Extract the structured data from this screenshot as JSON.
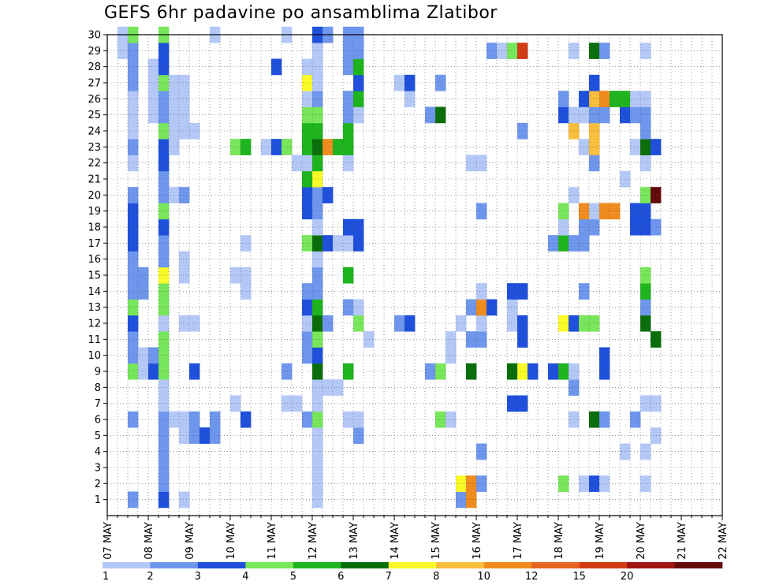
{
  "chart_data": {
    "type": "heatmap",
    "title": "GEFS 6hr padavine po ansamblima Zlatibor",
    "y_ticks": [
      1,
      2,
      3,
      4,
      5,
      6,
      7,
      8,
      9,
      10,
      11,
      12,
      13,
      14,
      15,
      16,
      17,
      18,
      19,
      20,
      21,
      22,
      23,
      24,
      25,
      26,
      27,
      28,
      29,
      30
    ],
    "ylim": [
      0,
      30
    ],
    "x_ticks": [
      "07 MAY",
      "08 MAY",
      "09 MAY",
      "10 MAY",
      "11 MAY",
      "12 MAY",
      "13 MAY",
      "14 MAY",
      "15 MAY",
      "16 MAY",
      "17 MAY",
      "18 MAY",
      "19 MAY",
      "20 MAY",
      "21 MAY",
      "22 MAY"
    ],
    "x_steps_per_day": 4,
    "grid": true,
    "colorbar": {
      "boundaries": [
        1,
        2,
        3,
        4,
        5,
        6,
        7,
        8,
        10,
        12,
        15,
        20
      ],
      "labels": [
        "1",
        "2",
        "3",
        "4",
        "5",
        "6",
        "7",
        "8",
        "10",
        "12",
        "15",
        "20"
      ],
      "colors": [
        "#b4c8f8",
        "#6e96ec",
        "#1e50dc",
        "#78e65a",
        "#1eb41e",
        "#0a6e0a",
        "#fafa28",
        "#f8be3c",
        "#f08c1e",
        "#e6641e",
        "#d23c14",
        "#a01414",
        "#640a0a"
      ]
    },
    "color_levels_note": "cells: [x_step, member, level] where level 0..12 indexes colorbar.colors",
    "cells": [
      [
        1,
        29,
        0
      ],
      [
        1,
        30,
        0
      ],
      [
        2,
        1,
        1
      ],
      [
        2,
        6,
        1
      ],
      [
        2,
        9,
        3
      ],
      [
        2,
        10,
        1
      ],
      [
        2,
        11,
        1
      ],
      [
        2,
        12,
        2
      ],
      [
        2,
        13,
        3
      ],
      [
        2,
        14,
        1
      ],
      [
        2,
        15,
        1
      ],
      [
        2,
        16,
        1
      ],
      [
        2,
        17,
        2
      ],
      [
        2,
        18,
        2
      ],
      [
        2,
        19,
        2
      ],
      [
        2,
        20,
        1
      ],
      [
        2,
        22,
        0
      ],
      [
        2,
        23,
        1
      ],
      [
        2,
        24,
        0
      ],
      [
        2,
        25,
        0
      ],
      [
        2,
        26,
        0
      ],
      [
        2,
        27,
        1
      ],
      [
        2,
        28,
        1
      ],
      [
        2,
        29,
        1
      ],
      [
        2,
        30,
        3
      ],
      [
        3,
        9,
        0
      ],
      [
        3,
        10,
        0
      ],
      [
        3,
        14,
        1
      ],
      [
        3,
        15,
        1
      ],
      [
        4,
        9,
        2
      ],
      [
        4,
        10,
        1
      ],
      [
        4,
        25,
        0
      ],
      [
        4,
        26,
        0
      ],
      [
        4,
        27,
        0
      ],
      [
        4,
        28,
        0
      ],
      [
        5,
        1,
        2
      ],
      [
        5,
        2,
        1
      ],
      [
        5,
        3,
        1
      ],
      [
        5,
        4,
        1
      ],
      [
        5,
        5,
        1
      ],
      [
        5,
        6,
        1
      ],
      [
        5,
        7,
        0
      ],
      [
        5,
        8,
        0
      ],
      [
        5,
        9,
        3
      ],
      [
        5,
        10,
        3
      ],
      [
        5,
        11,
        3
      ],
      [
        5,
        12,
        0
      ],
      [
        5,
        13,
        3
      ],
      [
        5,
        14,
        3
      ],
      [
        5,
        15,
        6
      ],
      [
        5,
        16,
        1
      ],
      [
        5,
        17,
        1
      ],
      [
        5,
        18,
        2
      ],
      [
        5,
        19,
        3
      ],
      [
        5,
        20,
        1
      ],
      [
        5,
        21,
        1
      ],
      [
        5,
        22,
        2
      ],
      [
        5,
        23,
        2
      ],
      [
        5,
        24,
        3
      ],
      [
        5,
        25,
        1
      ],
      [
        5,
        26,
        1
      ],
      [
        5,
        27,
        3
      ],
      [
        5,
        28,
        2
      ],
      [
        5,
        29,
        2
      ],
      [
        5,
        30,
        3
      ],
      [
        6,
        6,
        0
      ],
      [
        6,
        20,
        0
      ],
      [
        6,
        23,
        0
      ],
      [
        6,
        24,
        0
      ],
      [
        6,
        25,
        0
      ],
      [
        6,
        26,
        0
      ],
      [
        6,
        27,
        0
      ],
      [
        7,
        1,
        0
      ],
      [
        7,
        5,
        0
      ],
      [
        7,
        6,
        0
      ],
      [
        7,
        12,
        0
      ],
      [
        7,
        15,
        0
      ],
      [
        7,
        16,
        0
      ],
      [
        7,
        20,
        1
      ],
      [
        7,
        24,
        0
      ],
      [
        7,
        25,
        0
      ],
      [
        7,
        26,
        0
      ],
      [
        7,
        27,
        0
      ],
      [
        8,
        5,
        1
      ],
      [
        8,
        6,
        1
      ],
      [
        8,
        9,
        2
      ],
      [
        8,
        12,
        0
      ],
      [
        8,
        24,
        0
      ],
      [
        9,
        5,
        2
      ],
      [
        10,
        5,
        1
      ],
      [
        10,
        6,
        1
      ],
      [
        10,
        30,
        0
      ],
      [
        12,
        7,
        0
      ],
      [
        12,
        15,
        0
      ],
      [
        12,
        23,
        3
      ],
      [
        13,
        6,
        2
      ],
      [
        13,
        14,
        0
      ],
      [
        13,
        15,
        0
      ],
      [
        13,
        17,
        0
      ],
      [
        13,
        23,
        4
      ],
      [
        15,
        23,
        0
      ],
      [
        16,
        23,
        2
      ],
      [
        16,
        28,
        2
      ],
      [
        17,
        7,
        0
      ],
      [
        17,
        9,
        1
      ],
      [
        17,
        23,
        3
      ],
      [
        17,
        30,
        0
      ],
      [
        18,
        7,
        0
      ],
      [
        18,
        22,
        0
      ],
      [
        19,
        6,
        1
      ],
      [
        19,
        10,
        1
      ],
      [
        19,
        11,
        1
      ],
      [
        19,
        12,
        0
      ],
      [
        19,
        13,
        2
      ],
      [
        19,
        14,
        1
      ],
      [
        19,
        17,
        3
      ],
      [
        19,
        19,
        2
      ],
      [
        19,
        20,
        2
      ],
      [
        19,
        21,
        4
      ],
      [
        19,
        22,
        0
      ],
      [
        19,
        23,
        4
      ],
      [
        19,
        24,
        4
      ],
      [
        19,
        25,
        3
      ],
      [
        19,
        26,
        0
      ],
      [
        19,
        27,
        6
      ],
      [
        19,
        28,
        0
      ],
      [
        20,
        1,
        0
      ],
      [
        20,
        2,
        0
      ],
      [
        20,
        3,
        0
      ],
      [
        20,
        4,
        0
      ],
      [
        20,
        5,
        0
      ],
      [
        20,
        6,
        3
      ],
      [
        20,
        7,
        0
      ],
      [
        20,
        8,
        0
      ],
      [
        20,
        9,
        5
      ],
      [
        20,
        10,
        2
      ],
      [
        20,
        11,
        3
      ],
      [
        20,
        12,
        5
      ],
      [
        20,
        13,
        4
      ],
      [
        20,
        14,
        1
      ],
      [
        20,
        15,
        1
      ],
      [
        20,
        16,
        0
      ],
      [
        20,
        17,
        5
      ],
      [
        20,
        18,
        0
      ],
      [
        20,
        19,
        1
      ],
      [
        20,
        20,
        1
      ],
      [
        20,
        21,
        6
      ],
      [
        20,
        22,
        4
      ],
      [
        20,
        23,
        5
      ],
      [
        20,
        24,
        4
      ],
      [
        20,
        25,
        3
      ],
      [
        20,
        26,
        1
      ],
      [
        20,
        27,
        0
      ],
      [
        20,
        28,
        0
      ],
      [
        20,
        29,
        0
      ],
      [
        20,
        30,
        2
      ],
      [
        21,
        8,
        0
      ],
      [
        21,
        12,
        1
      ],
      [
        21,
        17,
        2
      ],
      [
        21,
        20,
        2
      ],
      [
        21,
        23,
        8
      ],
      [
        21,
        30,
        1
      ],
      [
        22,
        8,
        0
      ],
      [
        22,
        17,
        0
      ],
      [
        22,
        23,
        4
      ],
      [
        23,
        6,
        0
      ],
      [
        23,
        9,
        4
      ],
      [
        23,
        13,
        1
      ],
      [
        23,
        15,
        4
      ],
      [
        23,
        17,
        0
      ],
      [
        23,
        18,
        2
      ],
      [
        23,
        22,
        0
      ],
      [
        23,
        23,
        4
      ],
      [
        23,
        24,
        4
      ],
      [
        23,
        25,
        1
      ],
      [
        23,
        26,
        1
      ],
      [
        23,
        28,
        1
      ],
      [
        23,
        29,
        1
      ],
      [
        23,
        30,
        1
      ],
      [
        24,
        5,
        1
      ],
      [
        24,
        6,
        0
      ],
      [
        24,
        12,
        3
      ],
      [
        24,
        13,
        0
      ],
      [
        24,
        17,
        2
      ],
      [
        24,
        18,
        2
      ],
      [
        24,
        25,
        0
      ],
      [
        24,
        26,
        4
      ],
      [
        24,
        27,
        2
      ],
      [
        24,
        28,
        4
      ],
      [
        24,
        29,
        1
      ],
      [
        24,
        30,
        1
      ],
      [
        25,
        11,
        0
      ],
      [
        28,
        12,
        1
      ],
      [
        28,
        27,
        0
      ],
      [
        29,
        12,
        2
      ],
      [
        29,
        26,
        0
      ],
      [
        29,
        27,
        2
      ],
      [
        31,
        9,
        1
      ],
      [
        31,
        25,
        1
      ],
      [
        32,
        6,
        3
      ],
      [
        32,
        9,
        3
      ],
      [
        32,
        25,
        5
      ],
      [
        32,
        27,
        1
      ],
      [
        33,
        6,
        0
      ],
      [
        33,
        11,
        0
      ],
      [
        33,
        10,
        0
      ],
      [
        34,
        1,
        1
      ],
      [
        34,
        2,
        6
      ],
      [
        34,
        12,
        0
      ],
      [
        35,
        1,
        8
      ],
      [
        35,
        2,
        8
      ],
      [
        35,
        9,
        5
      ],
      [
        35,
        11,
        1
      ],
      [
        35,
        13,
        1
      ],
      [
        35,
        22,
        0
      ],
      [
        36,
        2,
        1
      ],
      [
        36,
        4,
        1
      ],
      [
        36,
        11,
        1
      ],
      [
        36,
        12,
        0
      ],
      [
        36,
        13,
        8
      ],
      [
        36,
        14,
        0
      ],
      [
        36,
        19,
        1
      ],
      [
        36,
        22,
        0
      ],
      [
        37,
        13,
        2
      ],
      [
        37,
        29,
        1
      ],
      [
        38,
        29,
        0
      ],
      [
        39,
        7,
        2
      ],
      [
        39,
        9,
        5
      ],
      [
        39,
        12,
        0
      ],
      [
        39,
        13,
        0
      ],
      [
        39,
        14,
        2
      ],
      [
        39,
        29,
        3
      ],
      [
        40,
        7,
        2
      ],
      [
        40,
        9,
        6
      ],
      [
        40,
        11,
        2
      ],
      [
        40,
        12,
        2
      ],
      [
        40,
        14,
        2
      ],
      [
        40,
        24,
        1
      ],
      [
        40,
        29,
        10
      ],
      [
        41,
        9,
        2
      ],
      [
        43,
        9,
        2
      ],
      [
        43,
        17,
        1
      ],
      [
        44,
        2,
        3
      ],
      [
        44,
        9,
        4
      ],
      [
        44,
        12,
        6
      ],
      [
        44,
        17,
        4
      ],
      [
        44,
        18,
        0
      ],
      [
        44,
        19,
        3
      ],
      [
        44,
        25,
        2
      ],
      [
        44,
        26,
        1
      ],
      [
        45,
        6,
        0
      ],
      [
        45,
        8,
        1
      ],
      [
        45,
        9,
        0
      ],
      [
        45,
        12,
        2
      ],
      [
        45,
        17,
        1
      ],
      [
        45,
        20,
        0
      ],
      [
        45,
        24,
        7
      ],
      [
        45,
        25,
        0
      ],
      [
        45,
        29,
        0
      ],
      [
        46,
        2,
        0
      ],
      [
        46,
        12,
        3
      ],
      [
        46,
        14,
        1
      ],
      [
        46,
        17,
        1
      ],
      [
        46,
        18,
        1
      ],
      [
        46,
        19,
        8
      ],
      [
        46,
        23,
        0
      ],
      [
        46,
        25,
        0
      ],
      [
        46,
        26,
        2
      ],
      [
        47,
        2,
        2
      ],
      [
        47,
        6,
        5
      ],
      [
        47,
        12,
        3
      ],
      [
        47,
        18,
        1
      ],
      [
        47,
        19,
        0
      ],
      [
        47,
        22,
        1
      ],
      [
        47,
        23,
        7
      ],
      [
        47,
        24,
        7
      ],
      [
        47,
        25,
        1
      ],
      [
        47,
        26,
        7
      ],
      [
        47,
        27,
        2
      ],
      [
        47,
        29,
        5
      ],
      [
        48,
        2,
        0
      ],
      [
        48,
        6,
        1
      ],
      [
        48,
        9,
        2
      ],
      [
        48,
        10,
        2
      ],
      [
        48,
        19,
        8
      ],
      [
        48,
        25,
        1
      ],
      [
        48,
        26,
        8
      ],
      [
        48,
        29,
        1
      ],
      [
        49,
        19,
        8
      ],
      [
        49,
        26,
        4
      ],
      [
        50,
        4,
        0
      ],
      [
        50,
        21,
        0
      ],
      [
        50,
        25,
        2
      ],
      [
        50,
        26,
        4
      ],
      [
        51,
        6,
        1
      ],
      [
        51,
        18,
        2
      ],
      [
        51,
        19,
        2
      ],
      [
        51,
        23,
        0
      ],
      [
        51,
        25,
        1
      ],
      [
        51,
        26,
        0
      ],
      [
        52,
        2,
        0
      ],
      [
        52,
        4,
        0
      ],
      [
        52,
        7,
        0
      ],
      [
        52,
        12,
        5
      ],
      [
        52,
        13,
        1
      ],
      [
        52,
        14,
        4
      ],
      [
        52,
        15,
        3
      ],
      [
        52,
        18,
        2
      ],
      [
        52,
        19,
        2
      ],
      [
        52,
        20,
        3
      ],
      [
        52,
        22,
        0
      ],
      [
        52,
        23,
        5
      ],
      [
        52,
        24,
        1
      ],
      [
        52,
        25,
        1
      ],
      [
        52,
        26,
        0
      ],
      [
        52,
        29,
        0
      ],
      [
        53,
        5,
        0
      ],
      [
        53,
        7,
        0
      ],
      [
        53,
        11,
        5
      ],
      [
        53,
        18,
        1
      ],
      [
        53,
        20,
        12
      ],
      [
        53,
        23,
        2
      ]
    ]
  }
}
